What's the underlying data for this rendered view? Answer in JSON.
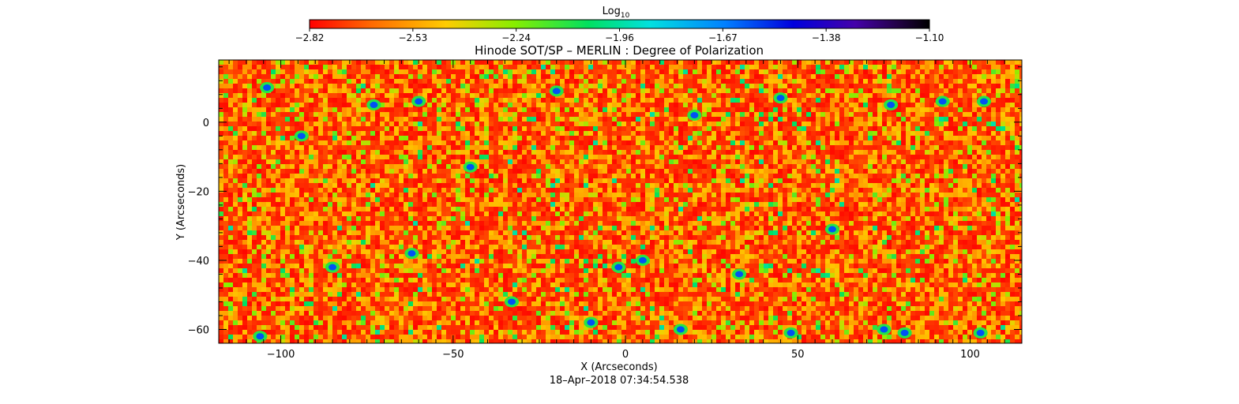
{
  "chart_data": {
    "type": "heatmap",
    "title": "Hinode SOT/SP – MERLIN : Degree of Polarization",
    "xlabel": "X (Arcseconds)",
    "ylabel": "Y (Arcseconds)",
    "xlim": [
      -118,
      115
    ],
    "ylim": [
      -64,
      18
    ],
    "xticks": [
      -100,
      -50,
      0,
      50,
      100
    ],
    "xtick_labels": [
      "−100",
      "−50",
      "0",
      "50",
      "100"
    ],
    "yticks": [
      0,
      -20,
      -40,
      -60
    ],
    "ytick_labels": [
      "0",
      "−20",
      "−40",
      "−60"
    ],
    "timestamp": "18–Apr–2018 07:34:54.538",
    "colorbar": {
      "label_base": "Log",
      "label_sub": "10",
      "min": -2.82,
      "max": -1.1,
      "ticks": [
        "−2.82",
        "−2.53",
        "−2.24",
        "−1.96",
        "−1.67",
        "−1.38",
        "−1.10"
      ],
      "colors": [
        "#ff0000",
        "#ff6a00",
        "#ffcc00",
        "#88ee00",
        "#00e060",
        "#00e0e0",
        "#0080ff",
        "#0000dd",
        "#4400aa",
        "#220044",
        "#000000"
      ]
    },
    "field_description_values": {
      "background_level": -2.75,
      "network_level": -2.3,
      "strong_patch_level": -1.6
    },
    "grid": false
  }
}
